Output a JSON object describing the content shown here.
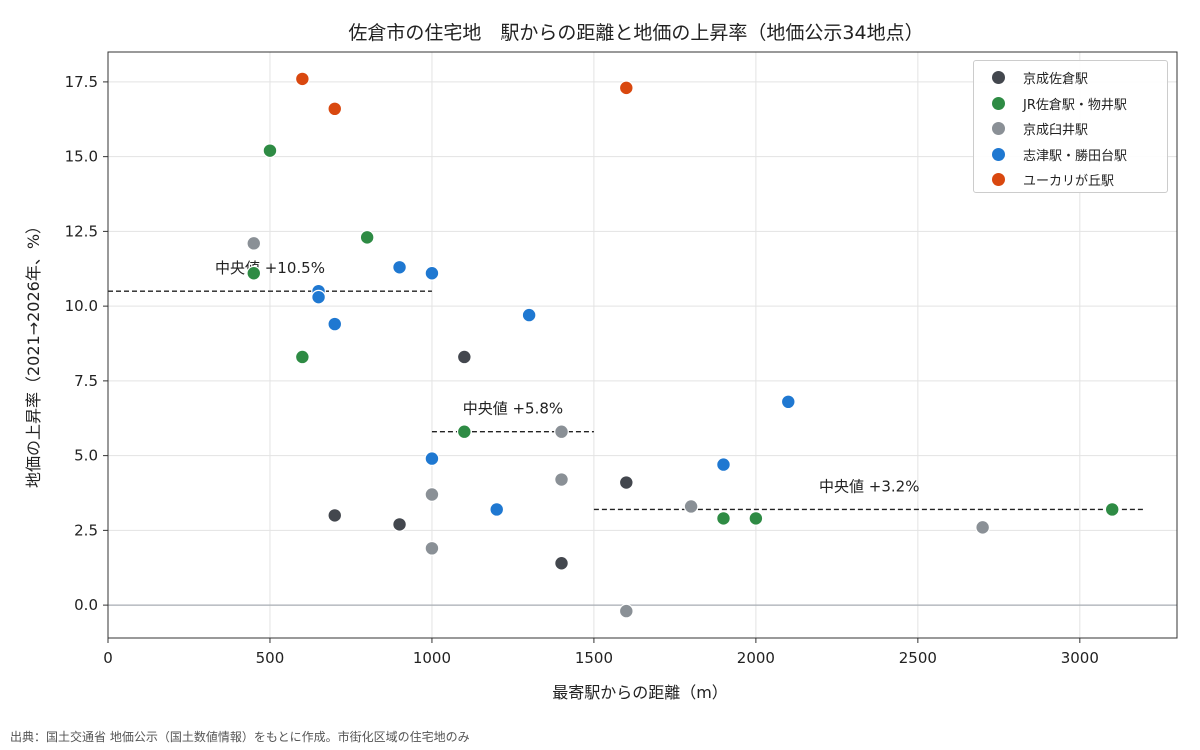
{
  "chart_data": {
    "type": "scatter",
    "title": "佐倉市の住宅地　駅からの距離と地価の上昇率（地価公示34地点）",
    "xlabel": "最寄駅からの距離（m）",
    "ylabel": "地価の上昇率（2021→2026年、%）",
    "xlim": [
      0,
      3300
    ],
    "ylim": [
      -1.1,
      18.5
    ],
    "x_ticks": [
      0,
      500,
      1000,
      1500,
      2000,
      2500,
      3000
    ],
    "x_tick_labels": [
      "0",
      "500",
      "1000",
      "1500",
      "2000",
      "2500",
      "3000"
    ],
    "y_ticks": [
      0,
      2.5,
      5,
      7.5,
      10,
      12.5,
      15,
      17.5
    ],
    "y_tick_labels": [
      "0.0",
      "2.5",
      "5.0",
      "7.5",
      "10.0",
      "12.5",
      "15.0",
      "17.5"
    ],
    "grid": true,
    "legend_position": "top-right",
    "series": [
      {
        "name": "京成佐倉駅",
        "color": "#43474e",
        "points": [
          [
            700,
            3.0
          ],
          [
            900,
            2.7
          ],
          [
            1100,
            8.3
          ],
          [
            1400,
            1.4
          ],
          [
            1600,
            4.1
          ]
        ]
      },
      {
        "name": "JR佐倉駅・物井駅",
        "color": "#2e8b44",
        "points": [
          [
            450,
            11.1
          ],
          [
            500,
            15.2
          ],
          [
            600,
            8.3
          ],
          [
            800,
            12.3
          ],
          [
            1100,
            5.8
          ],
          [
            1900,
            2.9
          ],
          [
            2000,
            2.9
          ],
          [
            3100,
            3.2
          ]
        ]
      },
      {
        "name": "京成臼井駅",
        "color": "#8a9096",
        "points": [
          [
            450,
            12.1
          ],
          [
            1000,
            3.7
          ],
          [
            1000,
            1.9
          ],
          [
            1400,
            5.8
          ],
          [
            1400,
            4.2
          ],
          [
            1600,
            -0.2
          ],
          [
            1800,
            3.3
          ],
          [
            2700,
            2.6
          ]
        ]
      },
      {
        "name": "志津駅・勝田台駅",
        "color": "#1f78d1",
        "points": [
          [
            650,
            10.5
          ],
          [
            650,
            10.3
          ],
          [
            700,
            9.4
          ],
          [
            900,
            11.3
          ],
          [
            1000,
            11.1
          ],
          [
            1000,
            4.9
          ],
          [
            1200,
            3.2
          ],
          [
            1300,
            9.7
          ],
          [
            1900,
            4.7
          ],
          [
            2100,
            6.8
          ]
        ]
      },
      {
        "name": "ユーカリが丘駅",
        "color": "#d9480f",
        "points": [
          [
            600,
            17.6
          ],
          [
            700,
            16.6
          ],
          [
            1600,
            17.3
          ]
        ]
      }
    ],
    "medians": [
      {
        "x_range": [
          0,
          1000
        ],
        "value": 10.5,
        "label": "中央値 +10.5%"
      },
      {
        "x_range": [
          1000,
          1500
        ],
        "value": 5.8,
        "label": "中央値 +5.8%"
      },
      {
        "x_range": [
          1500,
          3200
        ],
        "value": 3.2,
        "label": "中央値 +3.2%"
      }
    ]
  },
  "source_note": "出典：国土交通省 地価公示（国土数値情報）をもとに作成。市街化区域の住宅地のみ"
}
